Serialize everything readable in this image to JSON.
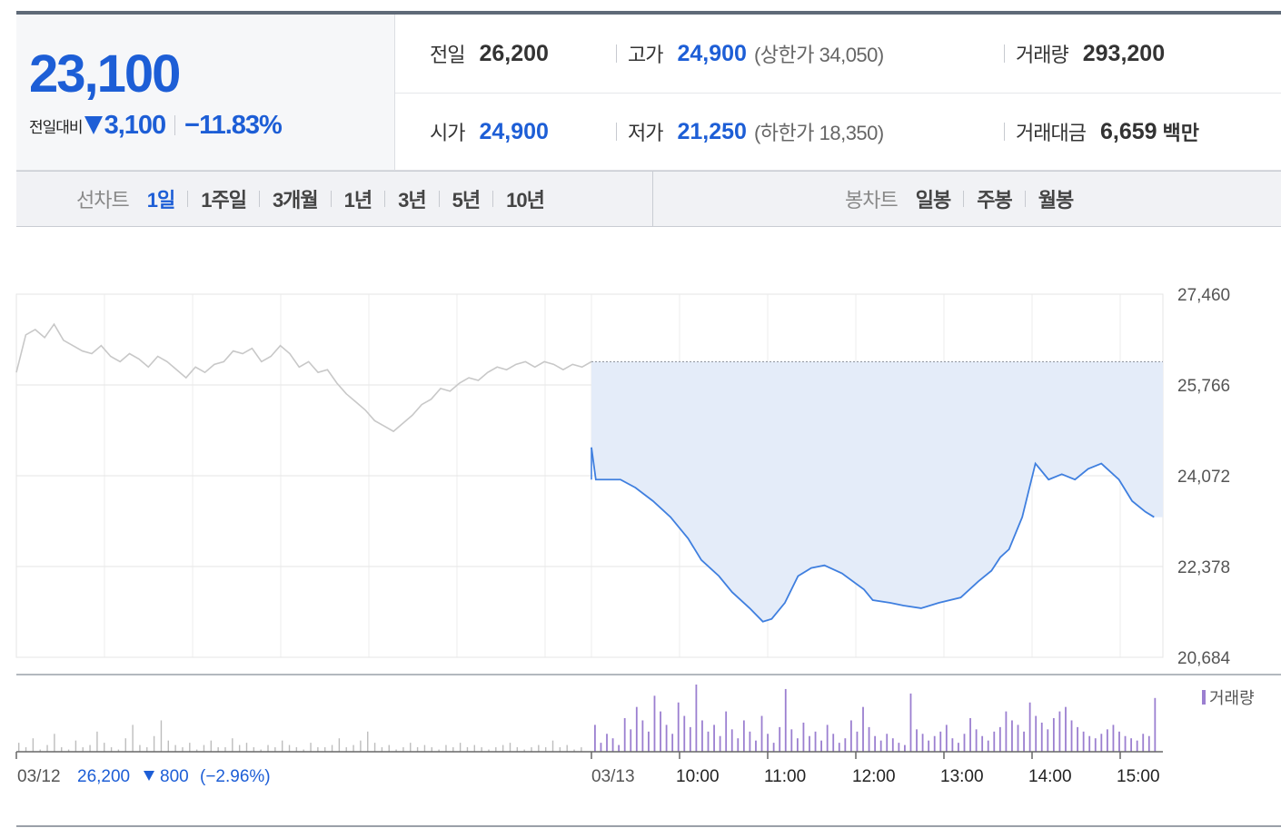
{
  "summary": {
    "current_price": "23,100",
    "compare_label": "전일대비",
    "change": "3,100",
    "change_pct": "−11.83%",
    "prev_close_label": "전일",
    "prev_close": "26,200",
    "high_label": "고가",
    "high": "24,900",
    "upper_limit": "(상한가 34,050)",
    "volume_label": "거래량",
    "volume": "293,200",
    "open_label": "시가",
    "open": "24,900",
    "low_label": "저가",
    "low": "21,250",
    "lower_limit": "(하한가 18,350)",
    "value_label": "거래대금",
    "value": "6,659",
    "value_unit": "백만"
  },
  "tabs": {
    "line_label": "선차트",
    "line_items": [
      "1일",
      "1주일",
      "3개월",
      "1년",
      "3년",
      "5년",
      "10년"
    ],
    "active_line": 0,
    "candle_label": "봉차트",
    "candle_items": [
      "일봉",
      "주봉",
      "월봉"
    ]
  },
  "colors": {
    "accent": "#1d5ed6",
    "price_line": "#3f7fdf",
    "area_fill": "#e4ecf9",
    "prev_day_line": "#c8c8c8",
    "volume_today": "#9b7fd0",
    "volume_prev": "#bdbdbd"
  },
  "chart_data": {
    "type": "line",
    "ylim": [
      20684,
      27460
    ],
    "yticks": [
      "27,460",
      "25,766",
      "24,072",
      "22,378",
      "20,684"
    ],
    "prev_close": 26200,
    "volume_legend": "거래량",
    "prev_day": {
      "date": "03/12",
      "close": "26,200",
      "change": "800",
      "change_pct": "(−2.96%)",
      "points": [
        26000,
        26700,
        26800,
        26650,
        26900,
        26600,
        26500,
        26400,
        26350,
        26500,
        26300,
        26200,
        26350,
        26250,
        26100,
        26300,
        26200,
        26050,
        25900,
        26100,
        26000,
        26150,
        26200,
        26400,
        26350,
        26450,
        26200,
        26300,
        26500,
        26350,
        26100,
        26200,
        26000,
        26050,
        25800,
        25600,
        25450,
        25300,
        25100,
        25000,
        24900,
        25050,
        25200,
        25400,
        25500,
        25700,
        25650,
        25800,
        25900,
        25850,
        26000,
        26100,
        26050,
        26150,
        26200,
        26100,
        26200,
        26150,
        26050,
        26150,
        26100,
        26200
      ]
    },
    "today": {
      "date": "03/13",
      "x_labels": [
        "10:00",
        "11:00",
        "12:00",
        "13:00",
        "14:00",
        "15:00"
      ],
      "times": [
        9.0,
        9.05,
        9.33,
        9.5,
        9.7,
        9.9,
        10.1,
        10.25,
        10.45,
        10.6,
        10.8,
        10.95,
        11.05,
        11.2,
        11.35,
        11.5,
        11.65,
        11.85,
        12.1,
        12.2,
        12.4,
        12.55,
        12.75,
        12.95,
        13.2,
        13.4,
        13.55,
        13.65,
        13.75,
        13.9,
        14.05,
        14.2,
        14.35,
        14.5,
        14.65,
        14.8,
        15.0,
        15.15,
        15.3,
        15.4
      ],
      "values": [
        24600,
        24000,
        24000,
        23850,
        23600,
        23300,
        22900,
        22500,
        22200,
        21900,
        21600,
        21350,
        21400,
        21700,
        22200,
        22350,
        22400,
        22250,
        21950,
        21750,
        21700,
        21650,
        21600,
        21700,
        21800,
        22100,
        22300,
        22550,
        22700,
        23300,
        24300,
        24000,
        24100,
        24000,
        24200,
        24300,
        24000,
        23600,
        23400,
        23300
      ]
    },
    "volume": {
      "prev": [
        4,
        2,
        6,
        1,
        3,
        8,
        2,
        1,
        5,
        2,
        3,
        9,
        4,
        2,
        1,
        6,
        12,
        3,
        2,
        7,
        14,
        5,
        3,
        2,
        4,
        1,
        3,
        5,
        2,
        2,
        6,
        3,
        4,
        2,
        1,
        3,
        2,
        5,
        3,
        2,
        1,
        4,
        2,
        2,
        3,
        6,
        2,
        3,
        5,
        9,
        4,
        2,
        3,
        1,
        2,
        4,
        2,
        3,
        2,
        1,
        3,
        2,
        4,
        2,
        3,
        2,
        1,
        2,
        3,
        4,
        2,
        1,
        2,
        3,
        2,
        5,
        2,
        3,
        1,
        2
      ],
      "today": [
        12,
        4,
        8,
        6,
        3,
        15,
        10,
        20,
        14,
        9,
        25,
        18,
        12,
        8,
        22,
        16,
        11,
        30,
        14,
        9,
        12,
        7,
        18,
        10,
        6,
        14,
        9,
        5,
        16,
        8,
        4,
        11,
        28,
        10,
        6,
        13,
        7,
        9,
        5,
        12,
        8,
        4,
        6,
        14,
        9,
        20,
        11,
        7,
        5,
        8,
        6,
        4,
        3,
        26,
        10,
        8,
        5,
        7,
        9,
        12,
        6,
        4,
        8,
        15,
        10,
        7,
        5,
        9,
        11,
        18,
        14,
        12,
        9,
        22,
        16,
        13,
        10,
        15,
        18,
        20,
        14,
        11,
        9,
        7,
        6,
        8,
        10,
        12,
        9,
        7,
        6,
        5,
        8,
        7,
        24
      ]
    }
  }
}
